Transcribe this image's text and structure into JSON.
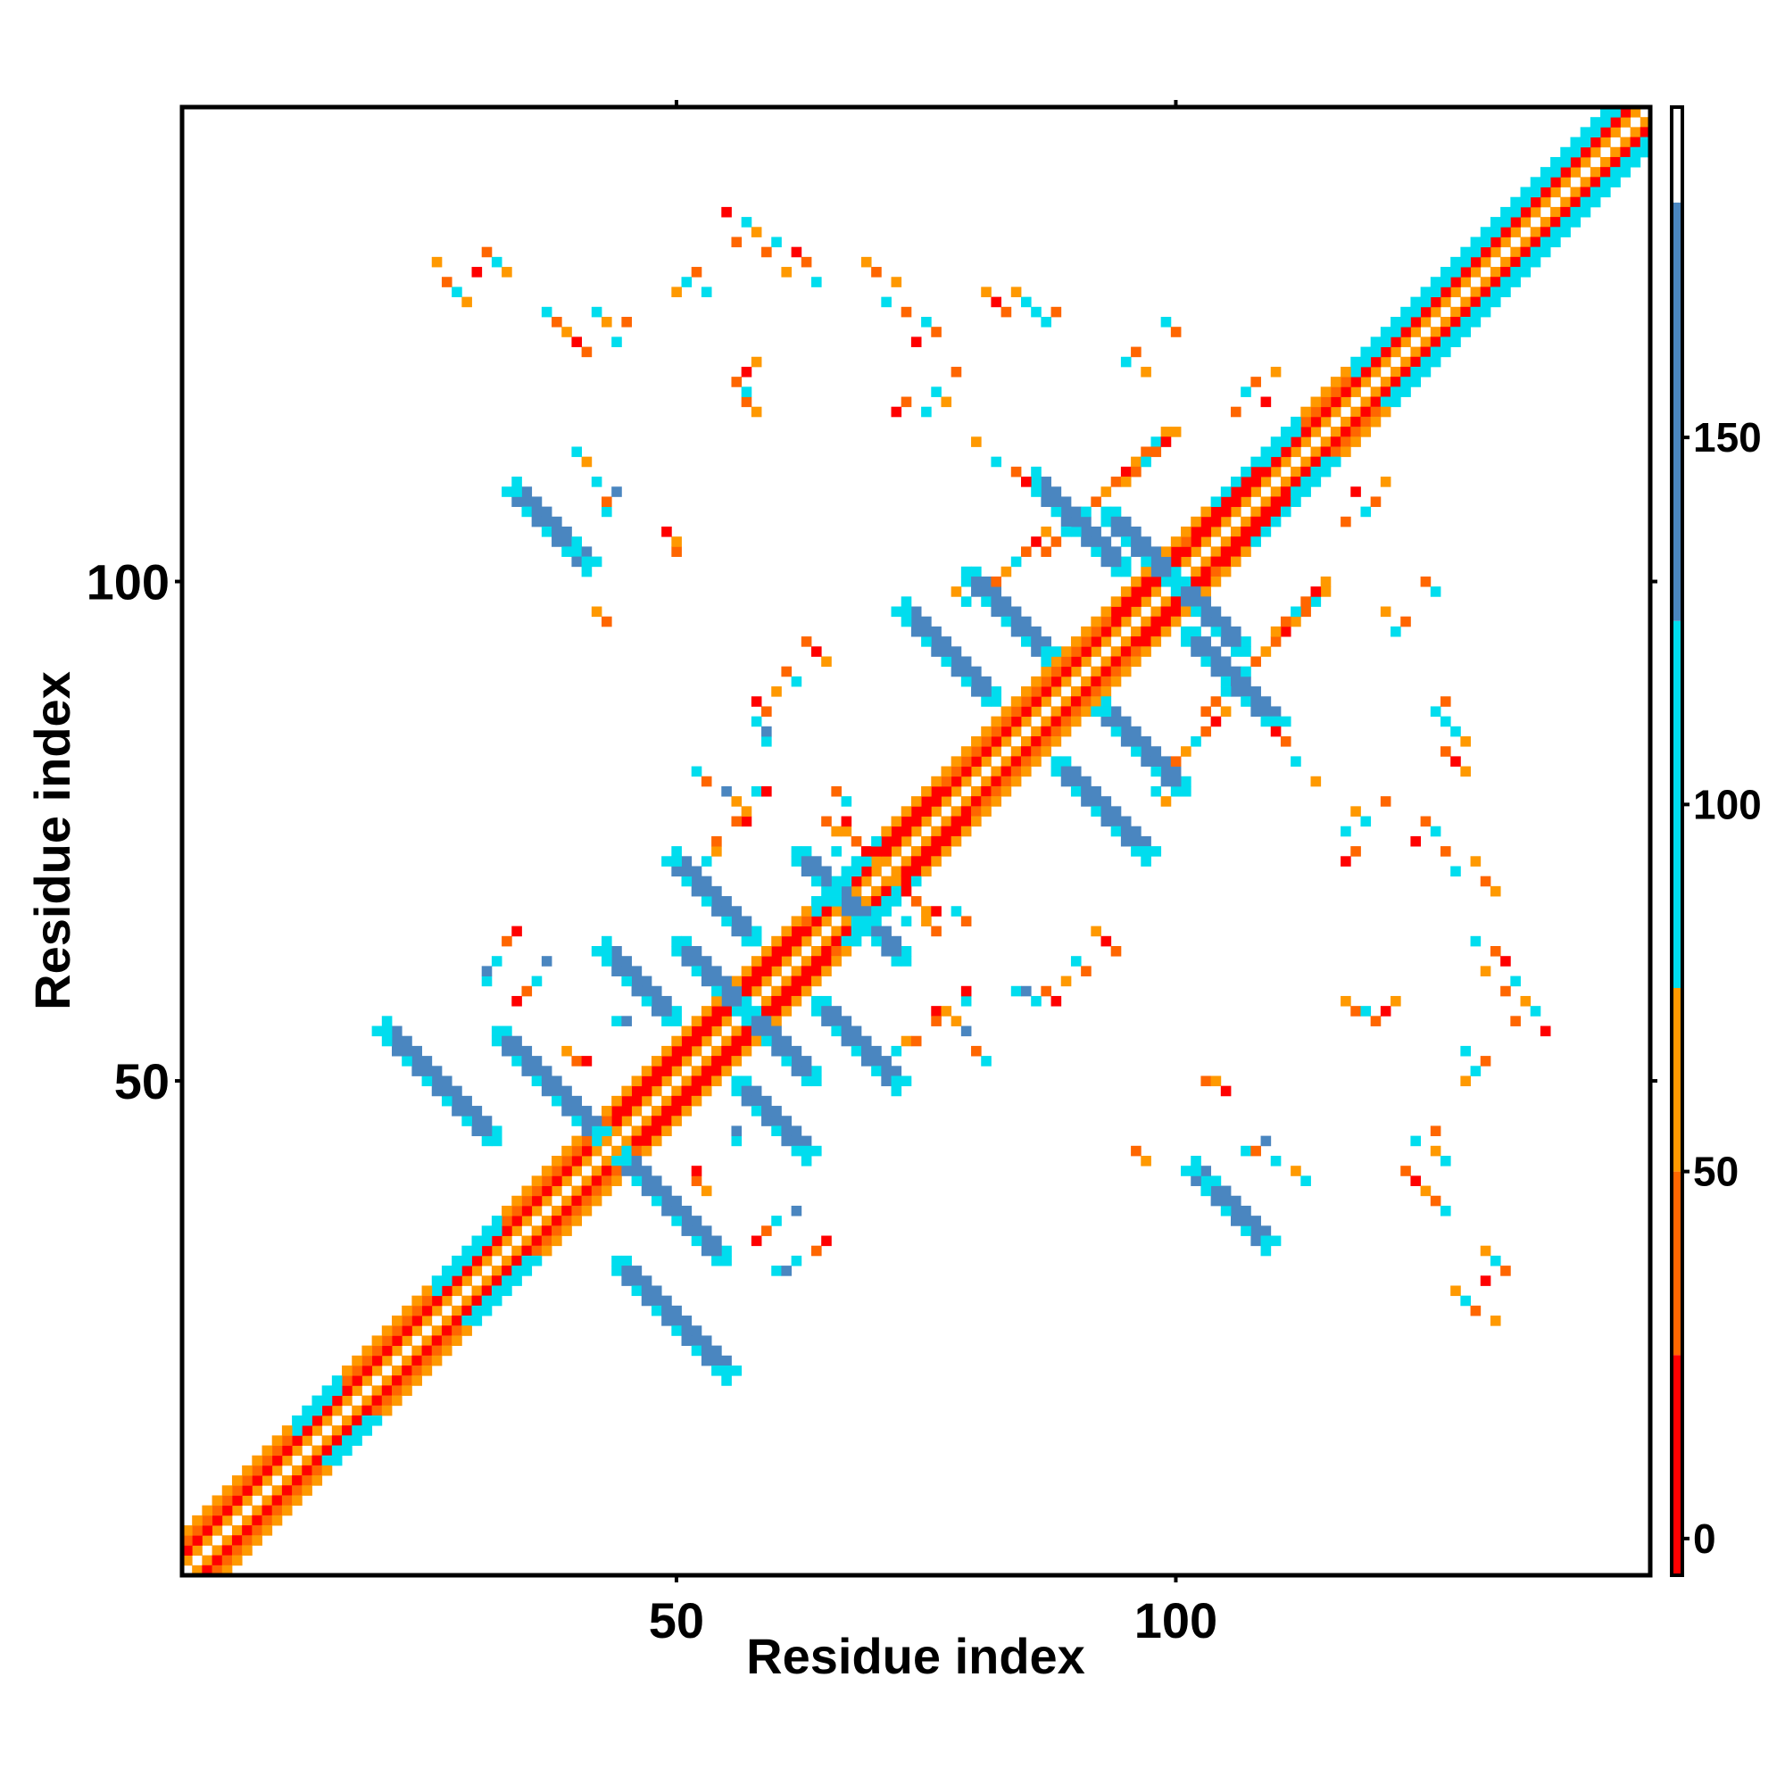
{
  "chart_data": {
    "type": "heatmap",
    "title": "",
    "xlabel": "Residue index",
    "ylabel": "Residue index",
    "xlim": [
      0.5,
      147.5
    ],
    "ylim": [
      0.5,
      147.5
    ],
    "x_ticks": [
      50,
      100
    ],
    "x_tick_labels": [
      "50",
      "100"
    ],
    "y_ticks": [
      50,
      100
    ],
    "y_tick_labels": [
      "50",
      "100"
    ],
    "grid": false,
    "legend": "right",
    "colorbar": {
      "range": [
        -5,
        195
      ],
      "ticks": [
        0,
        50,
        100,
        150
      ],
      "tick_labels": [
        "0",
        "50",
        "100",
        "150"
      ],
      "bands": [
        {
          "from": -5,
          "to": 25,
          "color": "#ff0000"
        },
        {
          "from": 25,
          "to": 50,
          "color": "#ff6600"
        },
        {
          "from": 50,
          "to": 75,
          "color": "#ff9900"
        },
        {
          "from": 75,
          "to": 125,
          "color": "#00ddee"
        },
        {
          "from": 125,
          "to": 182,
          "color": "#4a86c0"
        },
        {
          "from": 182,
          "to": 195,
          "color": "#ffffff"
        }
      ]
    },
    "colors": {
      "red": "#ff0000",
      "orange": "#ff6600",
      "amber": "#ff9900",
      "cyan": "#00ddee",
      "steel": "#4a86c0"
    },
    "description_of_values": "Cells at (i, j) colored by value; symmetric about the diagonal",
    "diagonal_bands": [
      {
        "offset": 0,
        "from": 1,
        "to": 147,
        "value": 190
      },
      {
        "offset": 1,
        "from": 1,
        "to": 147,
        "value": 60
      },
      {
        "offset": 2,
        "from": 1,
        "to": 147,
        "value": 15
      },
      {
        "offset": 3,
        "from": 1,
        "to": 147,
        "value": 40
      },
      {
        "offset": 4,
        "from": 1,
        "to": 147,
        "value": 65
      }
    ],
    "helix_regions": [
      {
        "from": 12,
        "to": 16,
        "value": 100
      },
      {
        "from": 26,
        "to": 32,
        "value": 100
      },
      {
        "from": 64,
        "to": 70,
        "value": 100
      },
      {
        "from": 104,
        "to": 112,
        "value": 100
      },
      {
        "from": 118,
        "to": 144,
        "value": 100
      }
    ],
    "red_regions": [
      {
        "from": 44,
        "to": 54,
        "value": 10
      },
      {
        "from": 56,
        "to": 62,
        "value": 10
      },
      {
        "from": 70,
        "to": 76,
        "value": 10
      },
      {
        "from": 94,
        "to": 100,
        "value": 10
      },
      {
        "from": 102,
        "to": 108,
        "value": 10
      }
    ],
    "sheet_strands": [
      {
        "i_start": 32,
        "j_start": 55,
        "length": 11,
        "direction": "anti",
        "value": 160
      },
      {
        "i_start": 44,
        "j_start": 32,
        "length": 12,
        "direction": "anti",
        "value": 160
      },
      {
        "i_start": 50,
        "j_start": 64,
        "length": 8,
        "direction": "anti",
        "value": 160
      },
      {
        "i_start": 56,
        "j_start": 50,
        "length": 8,
        "direction": "anti",
        "value": 160
      },
      {
        "i_start": 62,
        "j_start": 73,
        "length": 8,
        "direction": "anti",
        "value": 160
      },
      {
        "i_start": 64,
        "j_start": 58,
        "length": 9,
        "direction": "anti",
        "value": 160
      },
      {
        "i_start": 79,
        "j_start": 101,
        "length": 9,
        "direction": "anti",
        "value": 160
      },
      {
        "i_start": 88,
        "j_start": 82,
        "length": 10,
        "direction": "anti",
        "value": 160
      },
      {
        "i_start": 93,
        "j_start": 107,
        "length": 8,
        "direction": "anti",
        "value": 160
      },
      {
        "i_start": 101,
        "j_start": 95,
        "length": 10,
        "direction": "anti",
        "value": 160
      },
      {
        "i_start": 35,
        "j_start": 108,
        "length": 7,
        "direction": "anti",
        "value": 160
      },
      {
        "i_start": 103,
        "j_start": 40,
        "length": 7,
        "direction": "anti",
        "value": 160
      }
    ],
    "scattered_cells": [
      [
        39,
        53,
        60
      ],
      [
        40,
        52,
        40
      ],
      [
        41,
        52,
        15
      ],
      [
        44,
        56,
        100
      ],
      [
        45,
        56,
        160
      ],
      [
        34,
        58,
        15
      ],
      [
        35,
        59,
        40
      ],
      [
        36,
        60,
        100
      ],
      [
        37,
        62,
        160
      ],
      [
        60,
        31,
        100
      ],
      [
        61,
        31,
        160
      ],
      [
        62,
        32,
        100
      ],
      [
        64,
        33,
        40
      ],
      [
        65,
        34,
        15
      ],
      [
        72,
        53,
        100
      ],
      [
        73,
        54,
        60
      ],
      [
        74,
        54,
        40
      ],
      [
        76,
        57,
        15
      ],
      [
        77,
        57,
        40
      ],
      [
        78,
        56,
        60
      ],
      [
        84,
        59,
        100
      ],
      [
        85,
        59,
        160
      ],
      [
        86,
        58,
        100
      ],
      [
        87,
        59,
        40
      ],
      [
        88,
        58,
        15
      ],
      [
        89,
        60,
        60
      ],
      [
        90,
        62,
        100
      ],
      [
        91,
        61,
        40
      ],
      [
        92,
        65,
        60
      ],
      [
        93,
        64,
        15
      ],
      [
        94,
        63,
        40
      ],
      [
        65,
        76,
        40
      ],
      [
        66,
        75,
        60
      ],
      [
        67,
        75,
        100
      ],
      [
        68,
        74,
        40
      ],
      [
        69,
        73,
        15
      ],
      [
        70,
        72,
        60
      ],
      [
        56,
        76,
        40
      ],
      [
        57,
        77,
        60
      ],
      [
        58,
        79,
        100
      ],
      [
        59,
        79,
        15
      ],
      [
        52,
        81,
        100
      ],
      [
        53,
        80,
        40
      ],
      [
        55,
        79,
        160
      ],
      [
        74,
        68,
        40
      ],
      [
        75,
        67,
        60
      ],
      [
        76,
        67,
        15
      ],
      [
        78,
        67,
        100
      ],
      [
        79,
        66,
        40
      ],
      [
        73,
        66,
        100
      ],
      [
        96,
        43,
        40
      ],
      [
        97,
        42,
        60
      ],
      [
        103,
        50,
        40
      ],
      [
        104,
        50,
        60
      ],
      [
        105,
        49,
        15
      ],
      [
        107,
        43,
        100
      ],
      [
        108,
        43,
        40
      ],
      [
        109,
        44,
        160
      ],
      [
        110,
        42,
        100
      ],
      [
        112,
        41,
        60
      ],
      [
        113,
        40,
        100
      ],
      [
        117,
        58,
        60
      ],
      [
        118,
        57,
        40
      ],
      [
        119,
        57,
        100
      ],
      [
        120,
        56,
        40
      ],
      [
        121,
        57,
        15
      ],
      [
        122,
        58,
        60
      ],
      [
        117,
        72,
        15
      ],
      [
        118,
        73,
        40
      ],
      [
        117,
        75,
        100
      ],
      [
        118,
        77,
        60
      ],
      [
        119,
        76,
        100
      ],
      [
        121,
        78,
        40
      ],
      [
        114,
        80,
        60
      ],
      [
        112,
        82,
        100
      ],
      [
        111,
        84,
        40
      ],
      [
        110,
        85,
        15
      ],
      [
        103,
        87,
        40
      ],
      [
        104,
        88,
        60
      ],
      [
        105,
        89,
        100
      ],
      [
        106,
        90,
        160
      ],
      [
        107,
        91,
        100
      ],
      [
        108,
        92,
        40
      ],
      [
        109,
        93,
        60
      ],
      [
        110,
        94,
        40
      ],
      [
        111,
        95,
        15
      ],
      [
        112,
        96,
        60
      ],
      [
        113,
        97,
        40
      ],
      [
        114,
        98,
        100
      ],
      [
        115,
        99,
        60
      ],
      [
        88,
        104,
        40
      ],
      [
        87,
        105,
        60
      ],
      [
        86,
        104,
        15
      ],
      [
        85,
        103,
        40
      ],
      [
        84,
        102,
        100
      ],
      [
        83,
        101,
        60
      ],
      [
        82,
        100,
        40
      ],
      [
        79,
        98,
        100
      ],
      [
        78,
        99,
        60
      ],
      [
        95,
        110,
        60
      ],
      [
        96,
        111,
        40
      ],
      [
        97,
        112,
        100
      ],
      [
        98,
        113,
        40
      ],
      [
        99,
        114,
        15
      ],
      [
        100,
        115,
        60
      ],
      [
        106,
        117,
        40
      ],
      [
        107,
        119,
        100
      ],
      [
        108,
        120,
        40
      ],
      [
        109,
        118,
        15
      ],
      [
        110,
        121,
        60
      ],
      [
        95,
        122,
        100
      ],
      [
        96,
        123,
        40
      ],
      [
        97,
        121,
        60
      ],
      [
        99,
        126,
        100
      ],
      [
        100,
        125,
        40
      ],
      [
        87,
        126,
        100
      ],
      [
        88,
        127,
        40
      ],
      [
        86,
        127,
        100
      ],
      [
        85,
        128,
        100
      ],
      [
        84,
        129,
        60
      ],
      [
        83,
        127,
        40
      ],
      [
        82,
        128,
        15
      ],
      [
        81,
        129,
        60
      ],
      [
        76,
        125,
        40
      ],
      [
        75,
        126,
        100
      ],
      [
        74,
        124,
        15
      ],
      [
        73,
        127,
        40
      ],
      [
        72,
        130,
        60
      ],
      [
        71,
        128,
        100
      ],
      [
        70,
        131,
        40
      ],
      [
        69,
        132,
        60
      ],
      [
        64,
        130,
        100
      ],
      [
        63,
        132,
        40
      ],
      [
        62,
        133,
        15
      ],
      [
        61,
        131,
        60
      ],
      [
        60,
        134,
        100
      ],
      [
        59,
        133,
        40
      ],
      [
        58,
        135,
        60
      ],
      [
        57,
        136,
        100
      ],
      [
        56,
        134,
        40
      ],
      [
        55,
        137,
        15
      ],
      [
        53,
        129,
        100
      ],
      [
        52,
        131,
        40
      ],
      [
        51,
        130,
        100
      ],
      [
        50,
        129,
        60
      ],
      [
        45,
        126,
        40
      ],
      [
        44,
        124,
        100
      ],
      [
        43,
        126,
        60
      ],
      [
        42,
        127,
        100
      ],
      [
        41,
        123,
        40
      ],
      [
        40,
        124,
        15
      ],
      [
        39,
        125,
        60
      ],
      [
        38,
        126,
        40
      ],
      [
        37,
        127,
        100
      ],
      [
        33,
        131,
        60
      ],
      [
        32,
        132,
        100
      ],
      [
        31,
        133,
        40
      ],
      [
        30,
        131,
        15
      ],
      [
        29,
        128,
        60
      ],
      [
        28,
        129,
        100
      ],
      [
        27,
        130,
        40
      ],
      [
        26,
        132,
        60
      ]
    ]
  }
}
